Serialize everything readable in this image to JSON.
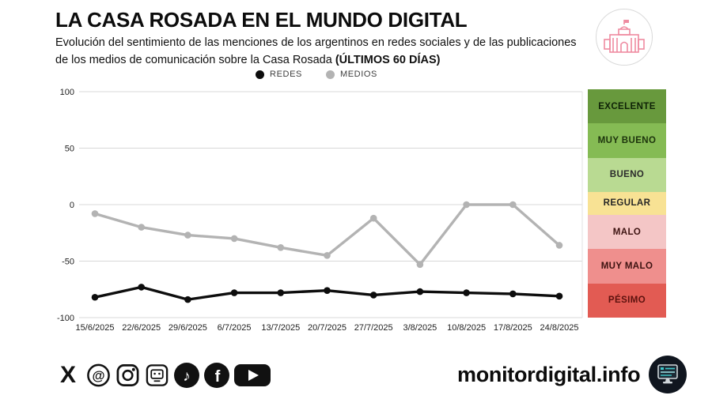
{
  "header": {
    "title": "LA CASA ROSADA EN EL MUNDO DIGITAL",
    "subtitle_line1": "Evolución del sentimiento de las menciones de los argentinos en redes sociales y de las publicaciones",
    "subtitle_line2": "de los medios de comunicación sobre la Casa Rosada ",
    "subtitle_bold": "(ÚLTIMOS 60 DÍAS)",
    "badge_icon": "casa-rosada-icon",
    "badge_color": "#ee8aa0"
  },
  "legend": {
    "items": [
      {
        "label": "REDES",
        "color": "#0d0d0d"
      },
      {
        "label": "MEDIOS",
        "color": "#b3b3b3"
      }
    ]
  },
  "chart_data": {
    "type": "line",
    "title": "Evolución del sentimiento (últimos 60 días)",
    "x": [
      "15/6/2025",
      "22/6/2025",
      "29/6/2025",
      "6/7/2025",
      "13/7/2025",
      "20/7/2025",
      "27/7/2025",
      "3/8/2025",
      "10/8/2025",
      "17/8/2025",
      "24/8/2025"
    ],
    "series": [
      {
        "name": "REDES",
        "color": "#0d0d0d",
        "values": [
          -82,
          -73,
          -84,
          -78,
          -78,
          -76,
          -80,
          -77,
          -78,
          -79,
          -81
        ]
      },
      {
        "name": "MEDIOS",
        "color": "#b3b3b3",
        "values": [
          -8,
          -20,
          -27,
          -30,
          -38,
          -45,
          -12,
          -53,
          0,
          0,
          -36
        ]
      }
    ],
    "xlabel": "",
    "ylabel": "",
    "ylim": [
      -100,
      100
    ],
    "yticks": [
      100,
      50,
      0,
      -50,
      -100
    ],
    "grid": true,
    "gridline_color": "#d8d8d8",
    "legend_position": "top-center"
  },
  "scale": {
    "bands": [
      {
        "label": "EXCELENTE",
        "color": "#68993d",
        "text_color": "#0e2206",
        "from": 70,
        "to": 100,
        "span": 30
      },
      {
        "label": "MUY BUENO",
        "color": "#85bb54",
        "text_color": "#1c330c",
        "from": 40,
        "to": 70,
        "span": 30
      },
      {
        "label": "BUENO",
        "color": "#b9da92",
        "text_color": "#2b2b2b",
        "from": 10,
        "to": 40,
        "span": 30
      },
      {
        "label": "REGULAR",
        "color": "#f8e294",
        "text_color": "#262626",
        "from": -10,
        "to": 10,
        "span": 20
      },
      {
        "label": "MALO",
        "color": "#f4c6c6",
        "text_color": "#3c1210",
        "from": -40,
        "to": -10,
        "span": 30
      },
      {
        "label": "MUY MALO",
        "color": "#ef8f8d",
        "text_color": "#3c1210",
        "from": -70,
        "to": -40,
        "span": 30
      },
      {
        "label": "PÉSIMO",
        "color": "#e25b53",
        "text_color": "#5c120e",
        "from": -100,
        "to": -70,
        "span": 30
      }
    ]
  },
  "footer": {
    "site": "monitordigital.info",
    "logo_icon": "monitor-screen-icon",
    "logo_bg": "#10161f",
    "logo_accent": "#3fc9cc",
    "social_icons": [
      "x-icon",
      "threads-icon",
      "instagram-icon",
      "monitordigital-icon",
      "tiktok-icon",
      "facebook-icon",
      "youtube-icon"
    ]
  }
}
